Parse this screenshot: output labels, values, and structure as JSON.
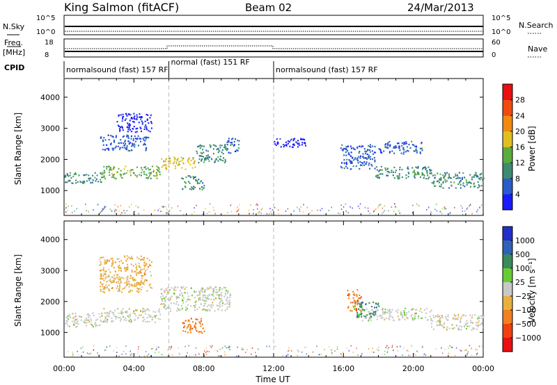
{
  "header": {
    "station": "King Salmon (fitACF)",
    "beam": "Beam 02",
    "date": "24/Mar/2013"
  },
  "top_panels": {
    "nsky": {
      "label": "N.Sky",
      "ticks": [
        "10^5",
        "10^0"
      ]
    },
    "nsearch": {
      "label": "N.Search",
      "ticks": [
        "10^5",
        "10^0"
      ]
    },
    "freq": {
      "label_line1": "Freq.",
      "label_line2": "[MHz]",
      "ticks": [
        "18",
        "8"
      ]
    },
    "nave": {
      "label": "Nave",
      "ticks": [
        "60",
        "0"
      ]
    },
    "cpid": {
      "label": "CPID"
    }
  },
  "modes": [
    {
      "label": "normalsound (fast) 157 RF",
      "start_hour": 0,
      "end_hour": 6
    },
    {
      "label": "normal (fast) 151 RF",
      "start_hour": 6,
      "end_hour": 12
    },
    {
      "label": "normalsound (fast) 157 RF",
      "start_hour": 12,
      "end_hour": 24
    }
  ],
  "chart_data": [
    {
      "type": "heatmap",
      "name": "power",
      "ylabel": "Slant Range [km]",
      "xlim": [
        0,
        24
      ],
      "ylim": [
        200,
        4600
      ],
      "yticks": [
        1000,
        2000,
        3000,
        4000
      ],
      "colorbar": {
        "label": "Power [dB]",
        "ticks": [
          "4",
          "8",
          "12",
          "16",
          "20",
          "24",
          "28"
        ],
        "colors": [
          "#1a1aff",
          "#2a5cc8",
          "#3c8a72",
          "#5aac3c",
          "#e0c020",
          "#f08a10",
          "#f04a10",
          "#e81010"
        ]
      },
      "regions": [
        {
          "x": [
            0.0,
            2.2
          ],
          "y": [
            1250,
            1600
          ],
          "level": 2
        },
        {
          "x": [
            2.2,
            5.5
          ],
          "y": [
            1400,
            1800
          ],
          "level": 3
        },
        {
          "x": [
            5.5,
            7.5
          ],
          "y": [
            1700,
            2100
          ],
          "level": 4
        },
        {
          "x": [
            7.5,
            9.3
          ],
          "y": [
            1900,
            2500
          ],
          "level": 2
        },
        {
          "x": [
            9.3,
            10.0
          ],
          "y": [
            2200,
            2700
          ],
          "level": 1
        },
        {
          "x": [
            6.7,
            8.0
          ],
          "y": [
            1050,
            1500
          ],
          "level": 2
        },
        {
          "x": [
            2.0,
            4.8
          ],
          "y": [
            2300,
            2800
          ],
          "level": 1
        },
        {
          "x": [
            3.0,
            5.0
          ],
          "y": [
            2900,
            3500
          ],
          "level": 0
        },
        {
          "x": [
            15.8,
            17.8
          ],
          "y": [
            1700,
            2500
          ],
          "level": 1
        },
        {
          "x": [
            17.8,
            21.0
          ],
          "y": [
            1400,
            1800
          ],
          "level": 2
        },
        {
          "x": [
            21.0,
            24.0
          ],
          "y": [
            1100,
            1600
          ],
          "level": 2
        },
        {
          "x": [
            12.0,
            14.0
          ],
          "y": [
            2400,
            2700
          ],
          "level": 0
        },
        {
          "x": [
            18.0,
            20.5
          ],
          "y": [
            2200,
            2600
          ],
          "level": 1
        }
      ]
    },
    {
      "type": "heatmap",
      "name": "velocity",
      "ylabel": "Slant Range [km]",
      "xlabel": "Time UT",
      "xlim": [
        0,
        24
      ],
      "ylim": [
        200,
        4600
      ],
      "yticks": [
        1000,
        2000,
        3000,
        4000
      ],
      "xticks": [
        "00:00",
        "04:00",
        "08:00",
        "12:00",
        "16:00",
        "20:00",
        "00:00"
      ],
      "colorbar": {
        "label": "Velocity [m s⁻¹]",
        "ticks": [
          "1000",
          "500",
          "100",
          "25",
          "−25",
          "−100",
          "−500",
          "−1000"
        ],
        "colors": [
          "#2030c8",
          "#3060b8",
          "#3a8a5a",
          "#66cc33",
          "#c8c8c8",
          "#e8b040",
          "#f08020",
          "#f04010",
          "#e81010"
        ]
      },
      "regions": [
        {
          "x": [
            0.0,
            2.2
          ],
          "y": [
            1200,
            1650
          ],
          "vel": "25"
        },
        {
          "x": [
            2.2,
            5.5
          ],
          "y": [
            1350,
            1800
          ],
          "vel": "25"
        },
        {
          "x": [
            5.5,
            9.5
          ],
          "y": [
            1700,
            2500
          ],
          "vel": "25"
        },
        {
          "x": [
            6.7,
            8.0
          ],
          "y": [
            1000,
            1500
          ],
          "vel": "-500"
        },
        {
          "x": [
            2.0,
            5.0
          ],
          "y": [
            2300,
            3500
          ],
          "vel": "-100"
        },
        {
          "x": [
            16.2,
            17.0
          ],
          "y": [
            1700,
            2400
          ],
          "vel": "-500"
        },
        {
          "x": [
            17.0,
            21.0
          ],
          "y": [
            1400,
            1800
          ],
          "vel": "25"
        },
        {
          "x": [
            21.0,
            24.0
          ],
          "y": [
            1100,
            1600
          ],
          "vel": "25"
        },
        {
          "x": [
            16.5,
            18.0
          ],
          "y": [
            1500,
            2000
          ],
          "vel": "100"
        }
      ]
    }
  ]
}
